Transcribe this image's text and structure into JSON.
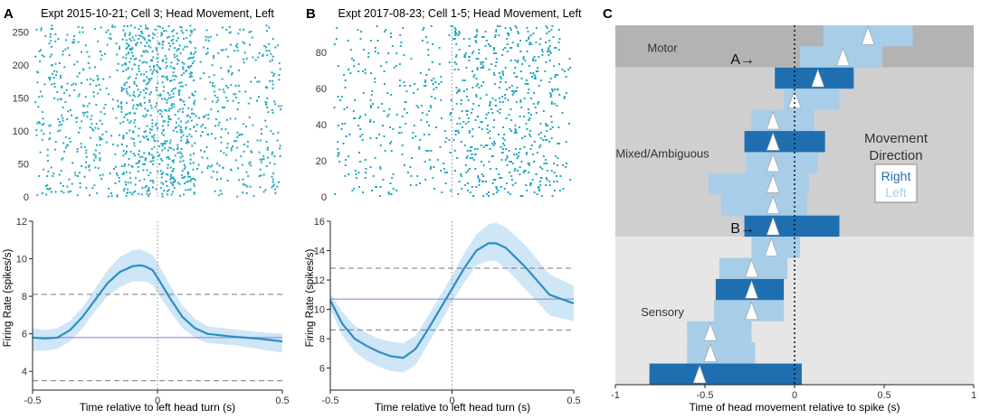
{
  "colors": {
    "raster": "#22a7bf",
    "psth_line": "#2a8fc4",
    "psth_band": "#cfe6f6",
    "baseline": "#8b8fd0",
    "threshold": "#7a7a7a",
    "right_bar": "#1f6fb0",
    "left_bar": "#a7cde8",
    "motor_bg": "#b3b3b3",
    "mixed_bg": "#cfcfcf",
    "sensory_bg": "#e6e6e6",
    "legend_right": "#1f6fb0",
    "legend_left": "#a7cde8"
  },
  "panels": [
    {
      "letter": "A",
      "title": "Expt 2015-10-21; Cell 3; Head Movement, Left",
      "raster": {
        "trials": 260,
        "yticks": [
          "0",
          "50",
          "100",
          "150",
          "200",
          "250"
        ],
        "seed": 17,
        "spikes_per_trial": 4
      },
      "psth": {
        "ylabel": "Firing Rate (spikes/s)",
        "xlabel": "Time relative to left head turn (s)",
        "xticks": [
          "-0.5",
          "0",
          "0.5"
        ],
        "yticks": [
          "4",
          "6",
          "8",
          "10",
          "12"
        ],
        "xlim": [
          -0.5,
          0.5
        ],
        "ylim": [
          3,
          12
        ],
        "baseline": 5.8,
        "thresholds": [
          3.5,
          8.1
        ],
        "x": [
          -0.5,
          -0.45,
          -0.4,
          -0.35,
          -0.3,
          -0.25,
          -0.2,
          -0.15,
          -0.1,
          -0.07,
          -0.05,
          -0.02,
          0.0,
          0.05,
          0.1,
          0.15,
          0.2,
          0.3,
          0.4,
          0.5
        ],
        "mean": [
          5.8,
          5.75,
          5.8,
          6.2,
          6.9,
          7.8,
          8.7,
          9.3,
          9.6,
          9.65,
          9.6,
          9.4,
          9.0,
          7.9,
          6.9,
          6.3,
          6.0,
          5.85,
          5.75,
          5.6
        ],
        "upper": [
          6.3,
          6.2,
          6.3,
          6.7,
          7.4,
          8.4,
          9.4,
          10.1,
          10.45,
          10.5,
          10.4,
          10.2,
          9.8,
          8.6,
          7.5,
          6.8,
          6.4,
          6.25,
          6.1,
          6.0
        ],
        "lower": [
          5.1,
          5.1,
          5.2,
          5.6,
          6.3,
          7.2,
          8.0,
          8.5,
          8.8,
          8.8,
          8.8,
          8.6,
          8.2,
          7.2,
          6.3,
          5.8,
          5.5,
          5.4,
          5.2,
          5.0
        ]
      }
    },
    {
      "letter": "B",
      "title": "Expt 2017-08-23; Cell 1-5; Head Movement, Left",
      "raster": {
        "trials": 95,
        "yticks": [
          "0",
          "20",
          "40",
          "60",
          "80"
        ],
        "seed": 53,
        "spikes_per_trial": 8
      },
      "psth": {
        "ylabel": "Firing Rate (spikes/s)",
        "xlabel": "Time relative to left head turn (s)",
        "xticks": [
          "-0.5",
          "0",
          "0.5"
        ],
        "yticks": [
          "6",
          "8",
          "10",
          "12",
          "14",
          "16"
        ],
        "xlim": [
          -0.5,
          0.5
        ],
        "ylim": [
          4.5,
          16
        ],
        "baseline": 10.7,
        "thresholds": [
          8.6,
          12.8
        ],
        "x": [
          -0.5,
          -0.45,
          -0.4,
          -0.35,
          -0.3,
          -0.25,
          -0.2,
          -0.15,
          -0.1,
          -0.05,
          0.0,
          0.05,
          0.1,
          0.15,
          0.18,
          0.22,
          0.3,
          0.4,
          0.5
        ],
        "mean": [
          10.6,
          9.0,
          8.0,
          7.5,
          7.1,
          6.8,
          6.7,
          7.3,
          8.6,
          10.0,
          11.4,
          12.8,
          14.0,
          14.5,
          14.5,
          14.2,
          12.9,
          11.0,
          10.4
        ],
        "upper": [
          11.1,
          9.8,
          8.9,
          8.4,
          8.0,
          7.8,
          7.7,
          8.2,
          9.5,
          10.9,
          12.3,
          13.8,
          15.1,
          15.8,
          15.9,
          15.6,
          14.4,
          12.4,
          11.6
        ],
        "lower": [
          10.0,
          8.2,
          7.1,
          6.5,
          6.1,
          5.8,
          5.7,
          6.2,
          7.6,
          9.0,
          10.5,
          11.8,
          13.0,
          13.3,
          13.3,
          12.8,
          11.4,
          9.6,
          9.2
        ]
      }
    }
  ],
  "panel_c": {
    "letter": "C",
    "xlabel": "Time of head movement relative to spike (s)",
    "xticks": [
      "-1",
      "-0.5",
      "0",
      "0.5",
      "1"
    ],
    "xlim": [
      -1,
      1
    ],
    "zero_line": 0,
    "regions": [
      {
        "label": "Motor",
        "start_row": 0,
        "end_row": 2
      },
      {
        "label": "Mixed/Ambiguous",
        "start_row": 2,
        "end_row": 10
      },
      {
        "label": "Sensory",
        "start_row": 10,
        "end_row": 17
      }
    ],
    "annotations": [
      {
        "label": "A→",
        "row": 2
      },
      {
        "label": "B→",
        "row": 10
      }
    ],
    "rows": [
      {
        "dir": "Left",
        "start": 0.16,
        "end": 0.66,
        "peak": 0.41
      },
      {
        "dir": "Left",
        "start": 0.03,
        "end": 0.49,
        "peak": 0.27
      },
      {
        "dir": "Right",
        "start": -0.11,
        "end": 0.33,
        "peak": 0.13
      },
      {
        "dir": "Left",
        "start": -0.06,
        "end": 0.25,
        "peak": 0.0
      },
      {
        "dir": "Left",
        "start": -0.24,
        "end": 0.11,
        "peak": -0.12
      },
      {
        "dir": "Right",
        "start": -0.28,
        "end": 0.17,
        "peak": -0.12
      },
      {
        "dir": "Left",
        "start": -0.27,
        "end": 0.13,
        "peak": -0.12
      },
      {
        "dir": "Left",
        "start": -0.48,
        "end": 0.08,
        "peak": -0.12
      },
      {
        "dir": "Left",
        "start": -0.41,
        "end": 0.07,
        "peak": -0.12
      },
      {
        "dir": "Right",
        "start": -0.28,
        "end": 0.25,
        "peak": -0.12
      },
      {
        "dir": "Left",
        "start": -0.24,
        "end": 0.03,
        "peak": -0.13
      },
      {
        "dir": "Left",
        "start": -0.42,
        "end": -0.04,
        "peak": -0.24
      },
      {
        "dir": "Right",
        "start": -0.44,
        "end": -0.06,
        "peak": -0.24
      },
      {
        "dir": "Left",
        "start": -0.45,
        "end": -0.06,
        "peak": -0.24
      },
      {
        "dir": "Left",
        "start": -0.6,
        "end": -0.24,
        "peak": -0.47
      },
      {
        "dir": "Left",
        "start": -0.6,
        "end": -0.22,
        "peak": -0.47
      },
      {
        "dir": "Right",
        "start": -0.81,
        "end": 0.04,
        "peak": -0.53
      }
    ],
    "legend": {
      "title_line1": "Movement",
      "title_line2": "Direction",
      "right": "Right",
      "left": "Left"
    }
  }
}
